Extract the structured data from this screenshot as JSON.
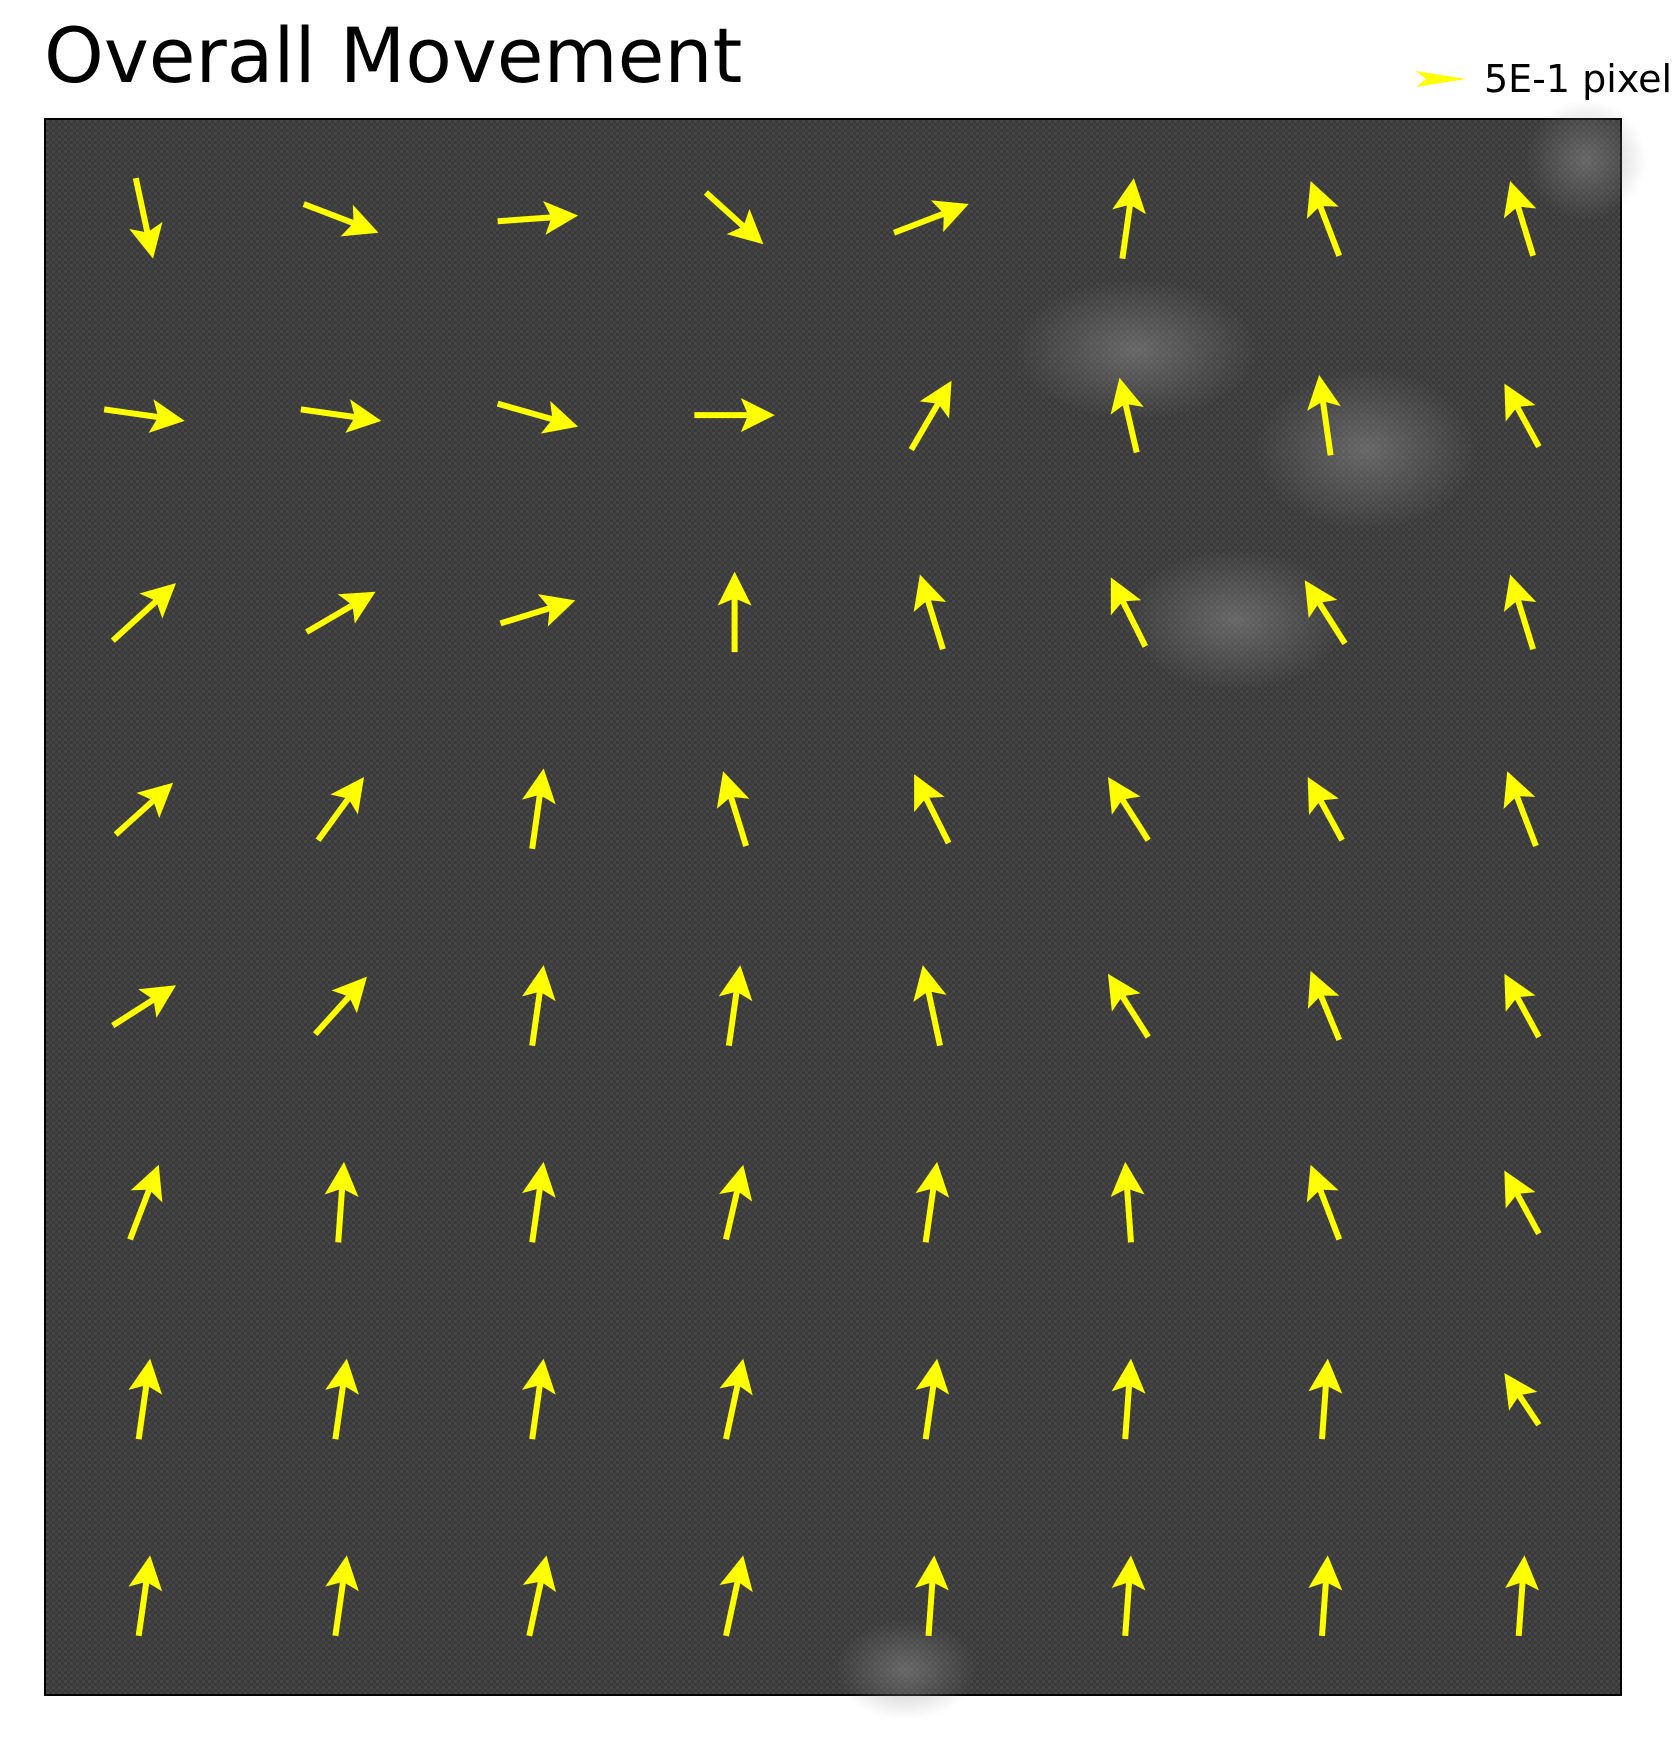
{
  "title": "Overall Movement",
  "legend": {
    "label": "5E-1 pixel"
  },
  "colors": {
    "arrow": "#ffff00",
    "background": "#3b3b3b",
    "frame": "#000000"
  },
  "chart_data": {
    "type": "quiver",
    "title": "Overall Movement",
    "legend_label": "5E-1 pixel",
    "legend_placement": "top-right",
    "grid": false,
    "xlim": [
      0,
      8
    ],
    "ylim": [
      0,
      8
    ],
    "x": [
      0.5,
      1.5,
      2.5,
      3.5,
      4.5,
      5.5,
      6.5,
      7.5
    ],
    "y": [
      7.5,
      6.5,
      5.5,
      4.5,
      3.5,
      2.5,
      1.5,
      0.5
    ],
    "u": [
      [
        0.15,
        0.65,
        0.7,
        0.5,
        0.65,
        0.1,
        -0.25,
        -0.2
      ],
      [
        0.7,
        0.7,
        0.7,
        0.7,
        0.35,
        -0.15,
        -0.1,
        -0.3
      ],
      [
        0.55,
        0.6,
        0.65,
        0.0,
        -0.2,
        -0.3,
        -0.35,
        -0.2
      ],
      [
        0.5,
        0.4,
        0.1,
        -0.2,
        -0.3,
        -0.35,
        -0.3,
        -0.25
      ],
      [
        0.55,
        0.45,
        0.1,
        0.1,
        -0.15,
        -0.35,
        -0.25,
        -0.3
      ],
      [
        0.25,
        0.05,
        0.1,
        0.15,
        0.1,
        -0.05,
        -0.25,
        -0.3
      ],
      [
        0.1,
        0.1,
        0.1,
        0.15,
        0.1,
        0.05,
        0.05,
        -0.3
      ],
      [
        0.1,
        0.1,
        0.15,
        0.15,
        0.05,
        0.05,
        0.05,
        0.05
      ]
    ],
    "v": [
      [
        -0.7,
        -0.25,
        0.05,
        -0.45,
        0.25,
        0.7,
        0.65,
        0.65
      ],
      [
        -0.1,
        -0.1,
        -0.2,
        0.0,
        0.6,
        0.65,
        0.7,
        0.55
      ],
      [
        0.5,
        0.35,
        0.2,
        0.7,
        0.65,
        0.6,
        0.55,
        0.65
      ],
      [
        0.45,
        0.55,
        0.7,
        0.65,
        0.6,
        0.55,
        0.55,
        0.65
      ],
      [
        0.35,
        0.5,
        0.7,
        0.7,
        0.7,
        0.55,
        0.6,
        0.55
      ],
      [
        0.65,
        0.7,
        0.7,
        0.65,
        0.7,
        0.7,
        0.65,
        0.55
      ],
      [
        0.7,
        0.7,
        0.7,
        0.7,
        0.7,
        0.7,
        0.7,
        0.45
      ],
      [
        0.7,
        0.7,
        0.7,
        0.7,
        0.7,
        0.7,
        0.7,
        0.7
      ]
    ]
  }
}
